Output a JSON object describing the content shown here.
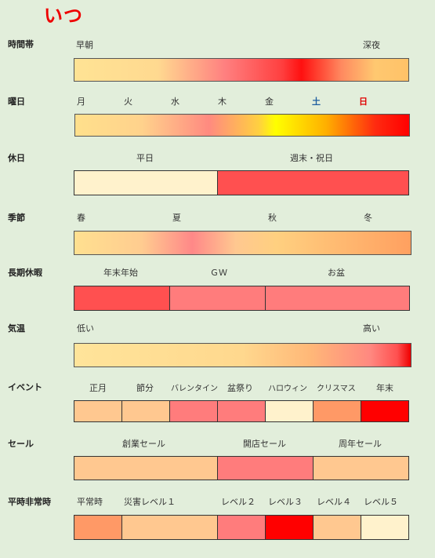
{
  "title": "いつ",
  "rows": {
    "time": {
      "label": "時間帯",
      "start": "早朝",
      "end": "深夜"
    },
    "weekday": {
      "label": "曜日",
      "days": [
        "月",
        "火",
        "水",
        "木",
        "金",
        "土",
        "日"
      ]
    },
    "holiday": {
      "label": "休日",
      "weekday": "平日",
      "weekend": "週末・祝日"
    },
    "season": {
      "label": "季節",
      "items": [
        "春",
        "夏",
        "秋",
        "冬"
      ]
    },
    "long_holiday": {
      "label": "長期休暇",
      "items": [
        "年末年始",
        "ＧＷ",
        "お盆"
      ]
    },
    "temperature": {
      "label": "気温",
      "low": "低い",
      "high": "高い"
    },
    "event": {
      "label": "イベント",
      "items": [
        "正月",
        "節分",
        "バレンタイン",
        "盆祭り",
        "ハロウィン",
        "クリスマス",
        "年末"
      ]
    },
    "sale": {
      "label": "セール",
      "items": [
        "創業セール",
        "開店セール",
        "周年セール"
      ]
    },
    "emergency": {
      "label": "平時非常時",
      "items": [
        "平常時",
        "災害レベル１",
        "レベル２",
        "レベル３",
        "レベル４",
        "レベル５"
      ]
    }
  },
  "colors": {
    "background": "#e2eedb",
    "title": "#ee0000",
    "saturday": "#1f5fa0",
    "sunday": "#e00000"
  }
}
